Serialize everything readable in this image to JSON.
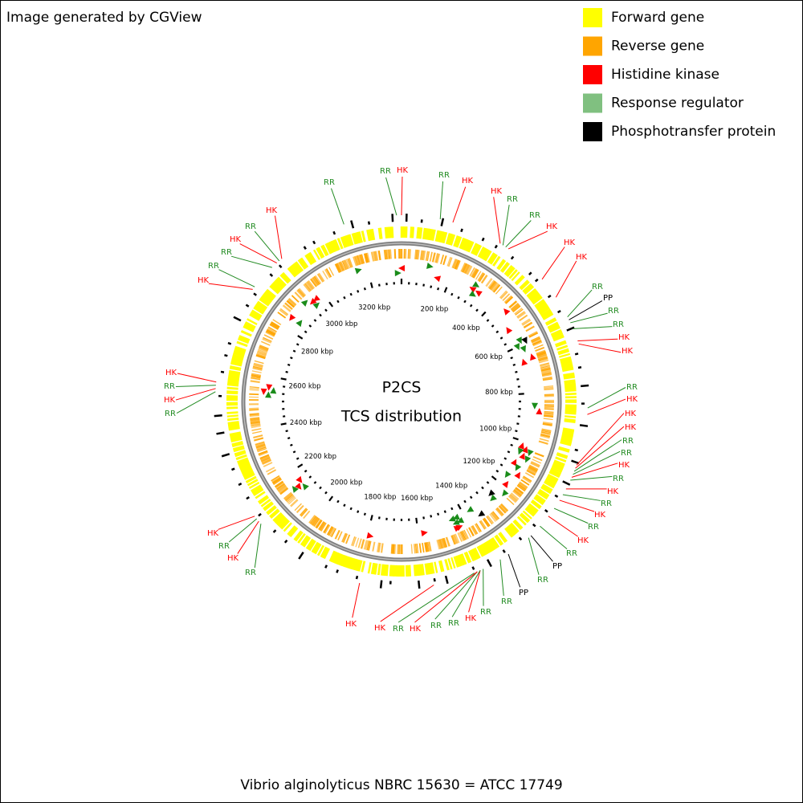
{
  "header": {
    "text": "Image generated by CGView"
  },
  "legend": {
    "items": [
      {
        "label": "Forward gene",
        "color": "#ffff00"
      },
      {
        "label": "Reverse gene",
        "color": "#ffa500"
      },
      {
        "label": "Histidine kinase",
        "color": "#ff0000"
      },
      {
        "label": "Response regulator",
        "color": "#80c080"
      },
      {
        "label": "Phosphotransfer protein",
        "color": "#000000"
      }
    ]
  },
  "map": {
    "title": "P2CS",
    "subtitle": "TCS distribution",
    "ruler_labels": [
      "200 kbp",
      "400 kbp",
      "600 kbp",
      "800 kbp",
      "1000 kbp",
      "1200 kbp",
      "1400 kbp",
      "1600 kbp",
      "1800 kbp",
      "2000 kbp",
      "2200 kbp",
      "2400 kbp",
      "2600 kbp",
      "2800 kbp",
      "3000 kbp",
      "3200 kbp"
    ],
    "feature_labels": [
      "RR",
      "HK",
      "RR",
      "HK",
      "HK",
      "RR",
      "RR",
      "HK",
      "HK",
      "HK",
      "RR",
      "PP",
      "RR",
      "RR",
      "HK",
      "HK",
      "RR",
      "HK",
      "HK",
      "HK",
      "RR",
      "RR",
      "HK",
      "RR",
      "HK",
      "RR",
      "HK",
      "RR",
      "HK",
      "RR",
      "PP",
      "RR",
      "PP",
      "RR",
      "RR",
      "HK",
      "RR",
      "RR",
      "HK",
      "RR",
      "HK",
      "HK",
      "RR",
      "HK",
      "RR",
      "HK",
      "RR",
      "HK",
      "RR",
      "HK",
      "HK",
      "RR",
      "HK",
      "RR",
      "RR",
      "HK",
      "RR"
    ]
  },
  "footer": {
    "text": "Vibrio alginolyticus NBRC 15630 = ATCC 17749"
  }
}
